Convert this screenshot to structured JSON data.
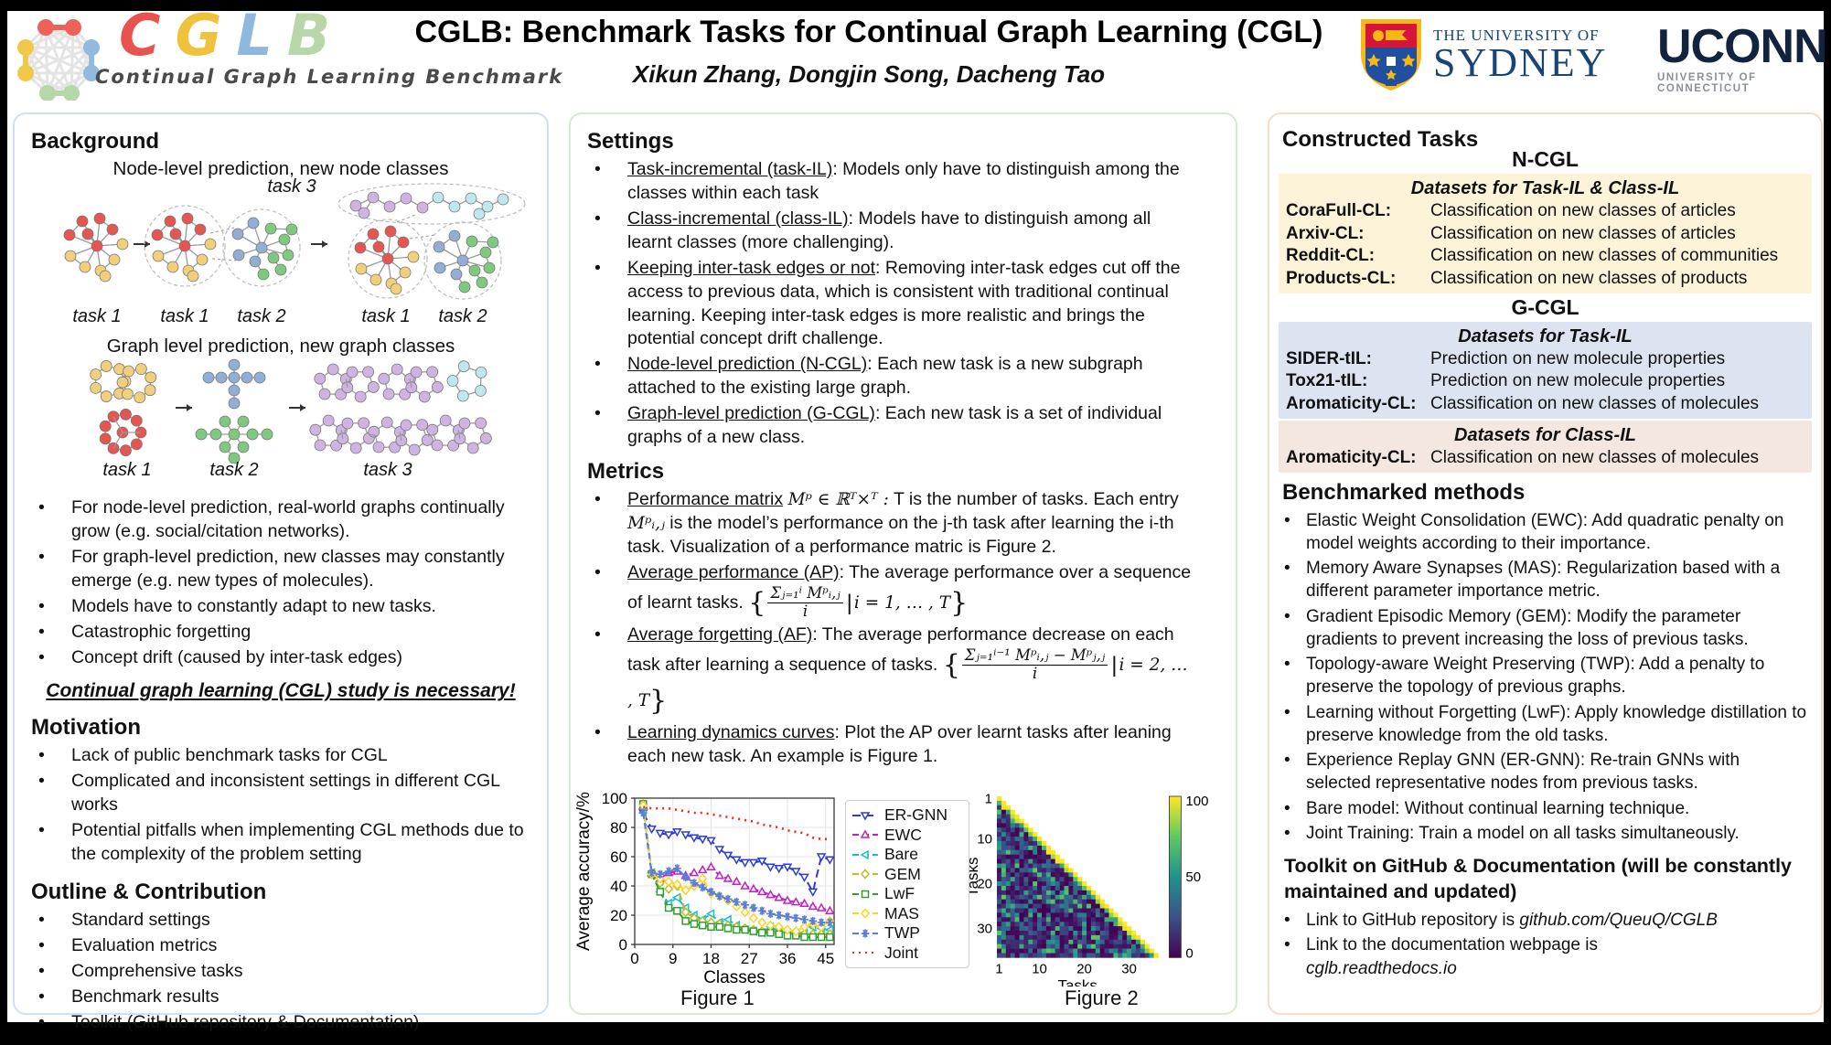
{
  "header": {
    "title": "CGLB: Benchmark Tasks for Continual Graph Learning (CGL)",
    "authors": "Xikun Zhang, Dongjin Song, Dacheng Tao",
    "logo": {
      "letters": [
        {
          "ch": "C",
          "color": "#e8534f"
        },
        {
          "ch": "G",
          "color": "#f0c23c"
        },
        {
          "ch": "L",
          "color": "#8fb8e0"
        },
        {
          "ch": "B",
          "color": "#b7d7a8"
        }
      ],
      "subtitle": "Continual Graph Learning Benchmark",
      "icon_colors": {
        "red": "#ee6159",
        "yellow": "#f2c84b",
        "blue": "#92bade",
        "green": "#b6d7a8",
        "edge": "#e4e4e4"
      }
    },
    "sydney": {
      "line1": "THE UNIVERSITY OF",
      "line2": "SYDNEY"
    },
    "uconn": {
      "line1": "UCONN",
      "line2": "UNIVERSITY OF CONNECTICUT"
    }
  },
  "background": {
    "heading": "Background",
    "diagram1_caption": "Node-level prediction, new node classes",
    "diagram1_task3": "task 3",
    "diagram1_labels": [
      "task 1",
      "task 1",
      "task 2",
      "task 1",
      "task 2"
    ],
    "diagram2_caption": "Graph level prediction, new graph classes",
    "diagram2_labels": [
      "task 1",
      "task 2",
      "task 3"
    ],
    "bullets": [
      "For node-level prediction, real-world graphs continually grow (e.g. social/citation networks).",
      "For graph-level prediction, new classes may constantly emerge (e.g. new types of molecules).",
      "Models have to constantly adapt to new tasks.",
      "Catastrophic forgetting",
      "Concept drift (caused by inter-task edges)"
    ],
    "emphasis": "Continual graph learning (CGL) study is necessary!"
  },
  "motivation": {
    "heading": "Motivation",
    "bullets": [
      "Lack of public benchmark tasks for CGL",
      "Complicated and inconsistent settings in different CGL works",
      "Potential pitfalls when implementing CGL methods due to the complexity of the problem setting"
    ]
  },
  "outline": {
    "heading": "Outline & Contribution",
    "bullets": [
      "Standard settings",
      "Evaluation metrics",
      "Comprehensive tasks",
      "Benchmark results",
      "Toolkit (GitHub repository & Documentation)"
    ]
  },
  "settings": {
    "heading": "Settings",
    "bullets": [
      {
        "lead": "Task-incremental (task-IL)",
        "rest": ": Models only have to distinguish among the classes within each task"
      },
      {
        "lead": "Class-incremental (class-IL)",
        "rest": ": Models have to distinguish among all learnt classes (more challenging)."
      },
      {
        "lead": "Keeping inter-task edges or not",
        "rest": ": Removing inter-task edges cut off the access to previous data, which is consistent with traditional continual learning. Keeping inter-task edges is more realistic and brings the potential concept drift challenge."
      },
      {
        "lead": "Node-level prediction (N-CGL)",
        "rest": ": Each new task is a new subgraph attached to the existing large graph."
      },
      {
        "lead": "Graph-level prediction (G-CGL)",
        "rest": ": Each new task is a set of individual graphs of a new class."
      }
    ]
  },
  "metrics": {
    "heading": "Metrics",
    "perf": {
      "lead": "Performance matrix",
      "f1": "Mᵖ ∈ ℝᵀ×ᵀ :",
      "t1": " T is the number of tasks. Each entry ",
      "f2": "Mᵖᵢ,ⱼ",
      "t2": " is the model’s performance on the j-th task after learning the i-th task. Visualization of a performance matric is Figure 2."
    },
    "ap": {
      "lead": "Average performance (AP)",
      "t1": ": The average performance over a sequence of learnt tasks. ",
      "num": "Σⱼ₌₁ⁱ Mᵖᵢ,ⱼ",
      "den": "i",
      "cond": "i = 1, … , T"
    },
    "af": {
      "lead": "Average forgetting (AF)",
      "t1": ": The average performance decrease on each task after learning a sequence of tasks. ",
      "num": "Σⱼ₌₁ⁱ⁻¹ Mᵖᵢ,ⱼ − Mᵖⱼ,ⱼ",
      "den": "i",
      "cond": "i = 2, … , T"
    },
    "ld": {
      "lead": "Learning dynamics curves",
      "rest": ": Plot the AP over learnt tasks after leaning each new task. An example is Figure 1."
    }
  },
  "figures": {
    "fig1_caption": "Figure 1",
    "fig2_caption": "Figure 2"
  },
  "chart_data": [
    {
      "id": "figure1",
      "type": "line",
      "title": "Figure 1",
      "xlabel": "Classes",
      "ylabel": "Average accuracy/%",
      "xlim": [
        0,
        47
      ],
      "ylim": [
        0,
        100
      ],
      "xticks": [
        0,
        9,
        18,
        27,
        36,
        45
      ],
      "yticks": [
        0,
        20,
        40,
        60,
        80,
        100
      ],
      "grid": true,
      "legend_position": "right",
      "x": [
        2,
        4,
        6,
        8,
        10,
        12,
        14,
        16,
        18,
        20,
        22,
        24,
        26,
        28,
        30,
        32,
        34,
        36,
        38,
        40,
        42,
        44,
        46
      ],
      "series": [
        {
          "name": "ER-GNN",
          "color": "#2d3bd3",
          "dash": "9 5",
          "marker": "tri-down",
          "values": [
            90,
            79,
            76,
            75,
            77,
            75,
            73,
            72,
            71,
            65,
            61,
            58,
            56,
            56,
            57,
            53,
            52,
            53,
            50,
            46,
            36,
            60,
            58
          ]
        },
        {
          "name": "EWC",
          "color": "#c31fc3",
          "dash": "7 4",
          "marker": "tri-up",
          "values": [
            95,
            49,
            45,
            49,
            50,
            47,
            49,
            51,
            53,
            47,
            45,
            43,
            40,
            38,
            36,
            34,
            32,
            30,
            29,
            28,
            26,
            25,
            23
          ]
        },
        {
          "name": "Bare",
          "color": "#17becf",
          "dash": "7 4",
          "marker": "tri-left",
          "values": [
            90,
            49,
            36,
            28,
            32,
            25,
            20,
            17,
            21,
            15,
            17,
            13,
            10,
            9,
            8,
            12,
            9,
            8,
            7,
            8,
            12,
            11,
            10
          ]
        },
        {
          "name": "GEM",
          "color": "#bcbd22",
          "dash": "7 4",
          "marker": "diamond",
          "values": [
            96,
            48,
            42,
            38,
            40,
            22,
            18,
            16,
            15,
            14,
            13,
            12,
            11,
            10,
            9,
            9,
            8,
            8,
            8,
            7,
            7,
            7,
            7
          ]
        },
        {
          "name": "LwF",
          "color": "#2f9e2f",
          "dash": "7 4",
          "marker": "square",
          "values": [
            96,
            48,
            36,
            25,
            23,
            16,
            14,
            13,
            12,
            12,
            11,
            10,
            10,
            9,
            8,
            8,
            7,
            6,
            6,
            5,
            5,
            5,
            5
          ]
        },
        {
          "name": "MAS",
          "color": "#ffd320",
          "dash": "7 4",
          "marker": "diamond",
          "values": [
            95,
            48,
            45,
            43,
            41,
            37,
            40,
            45,
            35,
            33,
            30,
            26,
            22,
            18,
            15,
            13,
            12,
            10,
            9,
            12,
            14,
            12,
            16
          ]
        },
        {
          "name": "TWP",
          "color": "#5b7fd4",
          "dash": "7 4",
          "marker": "star",
          "values": [
            90,
            49,
            48,
            50,
            52,
            46,
            42,
            39,
            36,
            33,
            31,
            29,
            27,
            25,
            23,
            21,
            20,
            19,
            18,
            17,
            16,
            15,
            15
          ]
        },
        {
          "name": "Joint",
          "color": "#ff2020",
          "dash": "2 5",
          "marker": "none",
          "values": [
            94,
            93,
            93,
            93,
            92,
            91,
            90,
            90,
            89,
            88,
            87,
            86,
            85,
            84,
            82,
            81,
            80,
            78,
            77,
            76,
            73,
            72,
            72
          ]
        }
      ]
    },
    {
      "id": "figure2",
      "type": "heatmap",
      "title": "Figure 2",
      "xlabel": "Tasks",
      "ylabel": "Tasks",
      "size": 36,
      "xticks": [
        1,
        10,
        20,
        30
      ],
      "yticks": [
        1,
        10,
        20,
        30
      ],
      "colorbar": {
        "min": 0,
        "max": 100,
        "ticks": [
          100,
          50,
          0
        ]
      },
      "pattern": "lower-triangular performance matrix; diagonal ≈ 100 (yellow), off-diagonal mostly 0–60 (viridis)",
      "diagonal_value": 100,
      "seed": 7
    }
  ],
  "constructed": {
    "heading": "Constructed Tasks",
    "ncgl_title": "N-CGL",
    "table1": {
      "header": "Datasets for Task-IL & Class-IL",
      "rows": [
        {
          "name": "CoraFull-CL:",
          "desc": "Classification on new classes of articles"
        },
        {
          "name": "Arxiv-CL:",
          "desc": "Classification on new classes of articles"
        },
        {
          "name": "Reddit-CL:",
          "desc": "Classification on new classes of communities"
        },
        {
          "name": "Products-CL:",
          "desc": "Classification on new classes of products"
        }
      ]
    },
    "gcgl_title": "G-CGL",
    "table2": {
      "header": "Datasets for Task-IL",
      "rows": [
        {
          "name": "SIDER-tIL:",
          "desc": "Prediction on new molecule properties"
        },
        {
          "name": "Tox21-tIL:",
          "desc": "Prediction on new molecule properties"
        },
        {
          "name": "Aromaticity-CL:",
          "desc": "Classification on new classes of molecules"
        }
      ]
    },
    "table3": {
      "header": "Datasets for Class-IL",
      "rows": [
        {
          "name": "Aromaticity-CL:",
          "desc": "Classification on new classes of molecules"
        }
      ]
    }
  },
  "methods": {
    "heading": "Benchmarked methods",
    "bullets": [
      "Elastic Weight Consolidation (EWC): Add quadratic penalty on model weights according to their importance.",
      "Memory Aware Synapses (MAS): Regularization based with a different parameter importance metric.",
      "Gradient Episodic Memory (GEM): Modify the parameter gradients to prevent increasing the loss of previous tasks.",
      "Topology-aware Weight Preserving (TWP): Add a penalty to preserve the topology of previous graphs.",
      "Learning without Forgetting (LwF): Apply knowledge distillation to preserve knowledge from the old tasks.",
      "Experience Replay GNN (ER-GNN): Re-train GNNs with selected representative nodes from previous tasks.",
      "Bare model: Without continual learning technique.",
      "Joint Training: Train a model on all tasks simultaneously."
    ]
  },
  "toolkit": {
    "heading": "Toolkit on GitHub & Documentation (will be constantly maintained and updated)",
    "bullets": [
      {
        "text": "Link to GitHub repository is ",
        "link": "github.com/QueuQ/CGLB"
      },
      {
        "text": "Link to the documentation webpage is ",
        "link": "cglb.readthedocs.io"
      }
    ]
  }
}
